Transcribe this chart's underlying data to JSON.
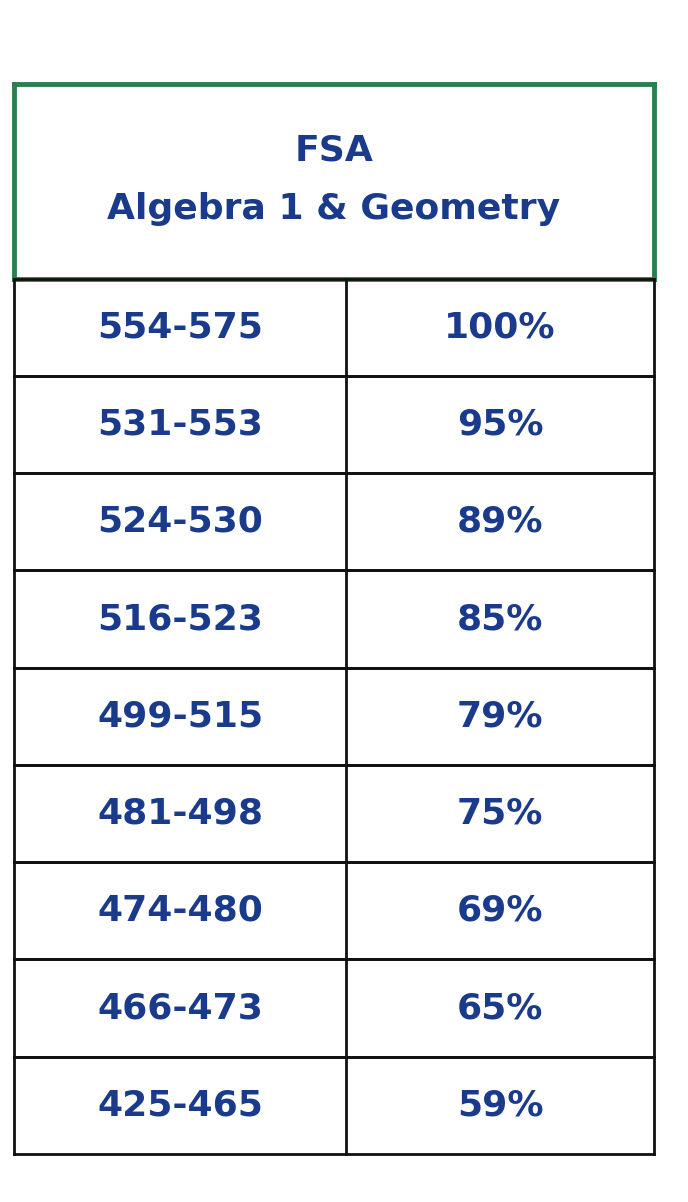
{
  "header_line1": "FSA",
  "header_line2": "Algebra 1 & Geometry",
  "rows": [
    [
      "554-575",
      "100%"
    ],
    [
      "531-553",
      "95%"
    ],
    [
      "524-530",
      "89%"
    ],
    [
      "516-523",
      "85%"
    ],
    [
      "499-515",
      "79%"
    ],
    [
      "481-498",
      "75%"
    ],
    [
      "474-480",
      "69%"
    ],
    [
      "466-473",
      "65%"
    ],
    [
      "425-465",
      "59%"
    ]
  ],
  "text_color": "#1a3a8c",
  "header_border_color": "#2e7d4f",
  "row_border_color": "#111111",
  "bg_color": "#ffffff",
  "fig_bg_color": "#ffffff",
  "header_fontsize": 26,
  "row_fontsize": 26,
  "col_split": 0.52
}
